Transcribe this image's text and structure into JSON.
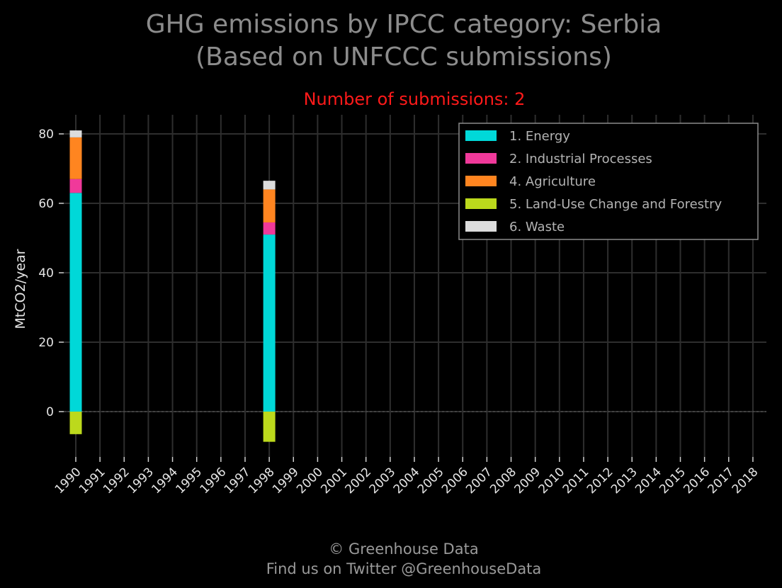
{
  "chart_data": {
    "type": "bar",
    "stacked": true,
    "title_line1": "GHG emissions by IPCC category: Serbia",
    "title_line2": "(Based on UNFCCC submissions)",
    "subtitle": "Number of submissions: 2",
    "ylabel": "MtCO2/year",
    "xlabel": "",
    "ylim": [
      -14,
      85
    ],
    "yticks": [
      0,
      20,
      40,
      60,
      80
    ],
    "grid": true,
    "legend_position": "top-right",
    "categories": [
      "1990",
      "1991",
      "1992",
      "1993",
      "1994",
      "1995",
      "1996",
      "1997",
      "1998",
      "1999",
      "2000",
      "2001",
      "2002",
      "2003",
      "2004",
      "2005",
      "2006",
      "2007",
      "2008",
      "2009",
      "2010",
      "2011",
      "2012",
      "2013",
      "2014",
      "2015",
      "2016",
      "2017",
      "2018"
    ],
    "series": [
      {
        "name": "1. Energy",
        "color": "#00d8d8",
        "values": [
          63,
          null,
          null,
          null,
          null,
          null,
          null,
          null,
          51,
          null,
          null,
          null,
          null,
          null,
          null,
          null,
          null,
          null,
          null,
          null,
          null,
          null,
          null,
          null,
          null,
          null,
          null,
          null,
          null
        ]
      },
      {
        "name": "2. Industrial Processes",
        "color": "#f0399a",
        "values": [
          4,
          null,
          null,
          null,
          null,
          null,
          null,
          null,
          3.5,
          null,
          null,
          null,
          null,
          null,
          null,
          null,
          null,
          null,
          null,
          null,
          null,
          null,
          null,
          null,
          null,
          null,
          null,
          null,
          null
        ]
      },
      {
        "name": "4. Agriculture",
        "color": "#ff8520",
        "values": [
          12,
          null,
          null,
          null,
          null,
          null,
          null,
          null,
          9.5,
          null,
          null,
          null,
          null,
          null,
          null,
          null,
          null,
          null,
          null,
          null,
          null,
          null,
          null,
          null,
          null,
          null,
          null,
          null,
          null
        ]
      },
      {
        "name": "5. Land-Use Change and Forestry",
        "color": "#bcd91c",
        "values": [
          -6.5,
          null,
          null,
          null,
          null,
          null,
          null,
          null,
          -8.7,
          null,
          null,
          null,
          null,
          null,
          null,
          null,
          null,
          null,
          null,
          null,
          null,
          null,
          null,
          null,
          null,
          null,
          null,
          null,
          null
        ]
      },
      {
        "name": "6. Waste",
        "color": "#dcdcdc",
        "values": [
          2,
          null,
          null,
          null,
          null,
          null,
          null,
          null,
          2.5,
          null,
          null,
          null,
          null,
          null,
          null,
          null,
          null,
          null,
          null,
          null,
          null,
          null,
          null,
          null,
          null,
          null,
          null,
          null,
          null
        ]
      }
    ]
  },
  "footer": {
    "line1": "© Greenhouse Data",
    "line2": "Find us on Twitter @GreenhouseData"
  },
  "colors": {
    "background": "#000000",
    "grid": "#2e2e2e",
    "title": "#8c8c8c",
    "subtitle": "#ff1a1a"
  }
}
